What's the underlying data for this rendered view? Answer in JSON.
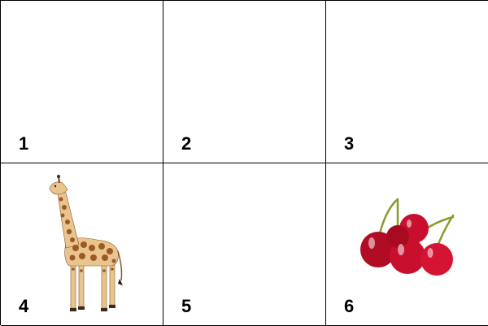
{
  "cells": [
    {
      "number": "1",
      "image": ""
    },
    {
      "number": "2",
      "image": ""
    },
    {
      "number": "3",
      "image": ""
    },
    {
      "number": "4",
      "image": "giraffe"
    },
    {
      "number": "5",
      "image": ""
    },
    {
      "number": "6",
      "image": "cherries"
    }
  ],
  "colors": {
    "grid_line": "#000000",
    "giraffe_base": "#e9c48c",
    "giraffe_spot": "#9a5a25",
    "cherry_red": "#c8102e",
    "cherry_stem": "#8a9a2a"
  }
}
